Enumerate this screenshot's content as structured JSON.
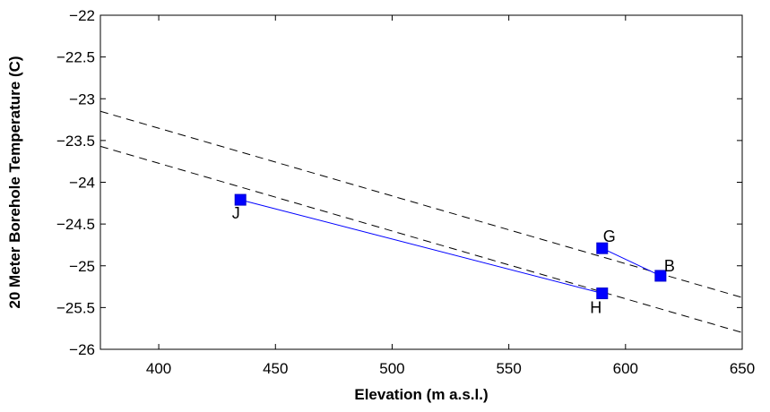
{
  "chart_data": {
    "type": "line",
    "xlabel": "Elevation (m a.s.l.)",
    "ylabel": "20 Meter Borehole Temperature (C)",
    "xlim": [
      375,
      650
    ],
    "ylim": [
      -26,
      -22
    ],
    "xticks": [
      400,
      450,
      500,
      550,
      600,
      650
    ],
    "yticks": [
      -26,
      -25.5,
      -25,
      -24.5,
      -24,
      -23.5,
      -23,
      -22.5,
      -22
    ],
    "xtick_labels": [
      "400",
      "450",
      "500",
      "550",
      "600",
      "650"
    ],
    "ytick_labels": [
      "−26",
      "−25.5",
      "−25",
      "−24.5",
      "−24",
      "−23.5",
      "−23",
      "−22.5",
      "−22"
    ],
    "grid": false,
    "series": [
      {
        "color": "#0000ff",
        "marker": "square",
        "points": [
          {
            "x": 435,
            "y": -24.21,
            "label": "J"
          },
          {
            "x": 590,
            "y": -25.33,
            "label": "H"
          }
        ]
      },
      {
        "color": "#0000ff",
        "marker": "square",
        "points": [
          {
            "x": 590,
            "y": -24.79,
            "label": "G"
          },
          {
            "x": 615,
            "y": -25.12,
            "label": "B"
          }
        ]
      }
    ],
    "reference_lines": [
      {
        "style": "dashed",
        "color": "#000000",
        "from": [
          375,
          -23.15
        ],
        "to": [
          650,
          -25.38
        ]
      },
      {
        "style": "dashed",
        "color": "#000000",
        "from": [
          375,
          -23.57
        ],
        "to": [
          650,
          -25.8
        ]
      }
    ]
  }
}
